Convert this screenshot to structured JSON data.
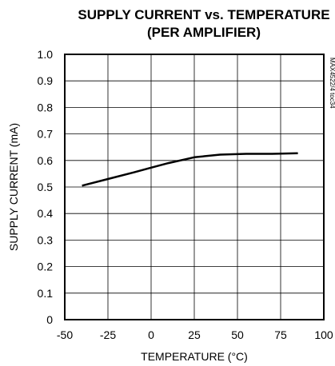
{
  "chart_data": {
    "type": "line",
    "title": "SUPPLY CURRENT vs. TEMPERATURE",
    "subtitle": "(PER AMPLIFIER)",
    "xlabel": "TEMPERATURE (°C)",
    "ylabel": "SUPPLY CURRENT (mA)",
    "part_code": "MAX4522/4 toc34",
    "xlim": [
      -50,
      100
    ],
    "ylim": [
      0,
      1.0
    ],
    "x_ticks": [
      "-50",
      "-25",
      "0",
      "25",
      "50",
      "75",
      "100"
    ],
    "y_ticks": [
      "0",
      "0.1",
      "0.2",
      "0.3",
      "0.4",
      "0.5",
      "0.6",
      "0.7",
      "0.8",
      "0.9",
      "1.0"
    ],
    "grid": true,
    "series": [
      {
        "x": [
          -40,
          -25,
          -10,
          0,
          10,
          25,
          40,
          55,
          70,
          85
        ],
        "y": [
          0.505,
          0.53,
          0.555,
          0.573,
          0.59,
          0.612,
          0.622,
          0.625,
          0.625,
          0.627
        ]
      }
    ]
  }
}
